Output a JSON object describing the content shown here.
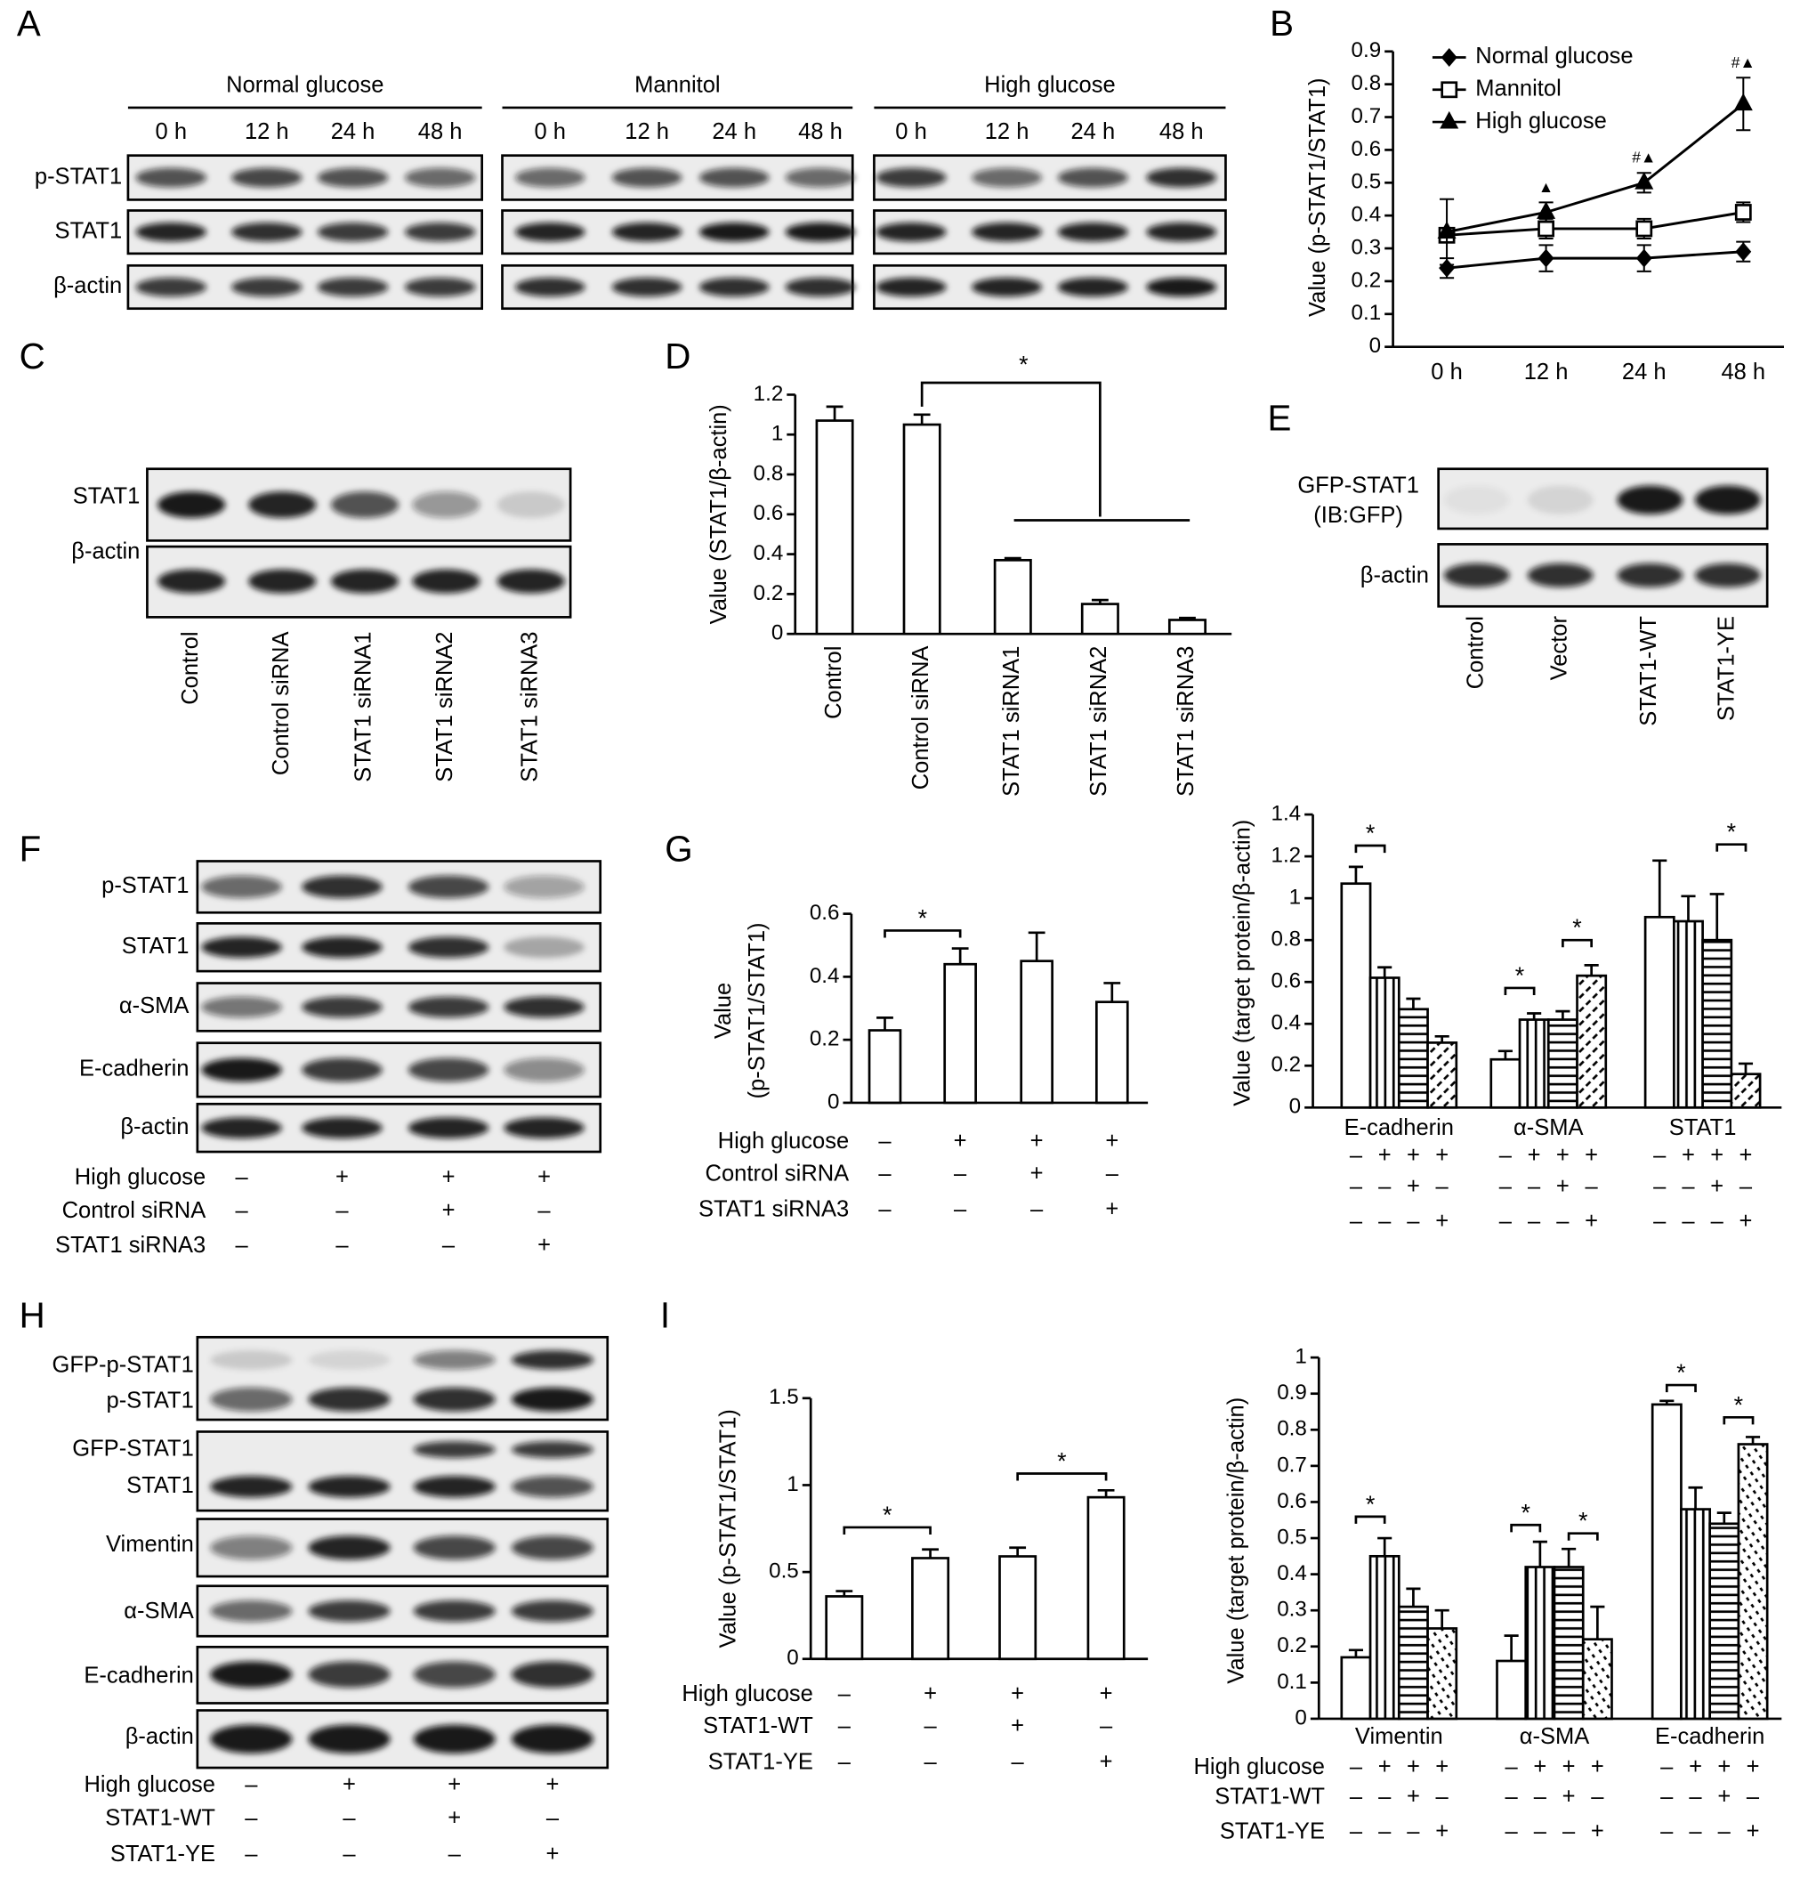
{
  "panel_labels": [
    "A",
    "B",
    "C",
    "D",
    "E",
    "F",
    "G",
    "H",
    "I"
  ],
  "blots": {
    "A": {
      "groups": [
        "Normal glucose",
        "Mannitol",
        "High glucose"
      ],
      "times": [
        "0 h",
        "12 h",
        "24 h",
        "48 h"
      ],
      "rows": [
        "p-STAT1",
        "STAT1",
        "β-actin"
      ]
    },
    "C": {
      "rows": [
        "STAT1",
        "β-actin"
      ],
      "lanes": [
        "Control",
        "Control siRNA",
        "STAT1 siRNA1",
        "STAT1 siRNA2",
        "STAT1 siRNA3"
      ]
    },
    "E": {
      "rows": [
        "GFP-STAT1",
        "(IB:GFP)",
        "β-actin"
      ],
      "lanes": [
        "Control",
        "Vector",
        "STAT1-WT",
        "STAT1-YE"
      ]
    },
    "F": {
      "rows": [
        "p-STAT1",
        "STAT1",
        "α-SMA",
        "E-cadherin",
        "β-actin"
      ],
      "conditions": [
        {
          "label": "High glucose",
          "signs": [
            "–",
            "+",
            "+",
            "+"
          ]
        },
        {
          "label": "Control siRNA",
          "signs": [
            "–",
            "–",
            "+",
            "–"
          ]
        },
        {
          "label": "STAT1 siRNA3",
          "signs": [
            "–",
            "–",
            "–",
            "+"
          ]
        }
      ]
    },
    "H": {
      "rows": [
        "GFP-p-STAT1",
        "p-STAT1",
        "GFP-STAT1",
        "STAT1",
        "Vimentin",
        "α-SMA",
        "E-cadherin",
        "β-actin"
      ],
      "conditions": [
        {
          "label": "High glucose",
          "signs": [
            "–",
            "+",
            "+",
            "+"
          ]
        },
        {
          "label": "STAT1-WT",
          "signs": [
            "–",
            "–",
            "+",
            "–"
          ]
        },
        {
          "label": "STAT1-YE",
          "signs": [
            "–",
            "–",
            "–",
            "+"
          ]
        }
      ]
    }
  },
  "chart_data": [
    {
      "type": "line",
      "ylabel": "Value (p-STAT1/STAT1)",
      "categories": [
        "0 h",
        "12 h",
        "24 h",
        "48 h"
      ],
      "ylim": [
        0,
        0.9
      ],
      "yticks": [
        0,
        0.1,
        0.2,
        0.3,
        0.4,
        0.5,
        0.6,
        0.7,
        0.8,
        0.9
      ],
      "legend": "upper left",
      "series": [
        {
          "name": "Normal glucose",
          "color": "#000000",
          "marker": "diamond",
          "values": [
            0.24,
            0.27,
            0.27,
            0.29
          ],
          "errors": [
            0.03,
            0.04,
            0.04,
            0.03
          ]
        },
        {
          "name": "Mannitol",
          "color": "#000000",
          "marker": "square",
          "values": [
            0.34,
            0.36,
            0.36,
            0.41
          ],
          "errors": [
            0.02,
            0.03,
            0.03,
            0.03
          ]
        },
        {
          "name": "High glucose",
          "color": "#000000",
          "marker": "triangle",
          "values": [
            0.35,
            0.41,
            0.5,
            0.74
          ],
          "errors": [
            0.1,
            0.03,
            0.03,
            0.08
          ]
        }
      ],
      "annotations": [
        null,
        "▲",
        "#▲",
        "#▲"
      ]
    },
    {
      "type": "bar",
      "ylabel": "Value (STAT1/β-actin)",
      "categories": [
        "Control",
        "Control siRNA",
        "STAT1 siRNA1",
        "STAT1 siRNA2",
        "STAT1 siRNA3"
      ],
      "values": [
        1.07,
        1.05,
        0.37,
        0.15,
        0.07
      ],
      "errors": [
        0.07,
        0.05,
        0.01,
        0.02,
        0.01
      ],
      "color": "#000000",
      "ylim": [
        0,
        1.2
      ],
      "yticks": [
        0,
        0.2,
        0.4,
        0.6,
        0.8,
        1,
        1.2
      ],
      "annotations": [
        "*"
      ]
    },
    {
      "type": "bar",
      "ylabel": [
        "Value",
        "(p-STAT1/STAT1)"
      ],
      "values": [
        0.23,
        0.44,
        0.45,
        0.32
      ],
      "errors": [
        0.04,
        0.05,
        0.09,
        0.06
      ],
      "color": "#000000",
      "ylim": [
        0,
        0.6
      ],
      "yticks": [
        0,
        0.2,
        0.4,
        0.6
      ],
      "conditions": [
        {
          "label": "High glucose",
          "signs": [
            "–",
            "+",
            "+",
            "+"
          ]
        },
        {
          "label": "Control siRNA",
          "signs": [
            "–",
            "–",
            "+",
            "–"
          ]
        },
        {
          "label": "STAT1 siRNA3",
          "signs": [
            "–",
            "–",
            "–",
            "+"
          ]
        }
      ],
      "annotations": [
        "*"
      ]
    },
    {
      "type": "bar",
      "ylabel": "Value (target protein/β-actin)",
      "categories": [
        "E-cadherin",
        "α-SMA",
        "STAT1"
      ],
      "ylim": [
        0,
        1.4
      ],
      "yticks": [
        0,
        0.2,
        0.4,
        0.6,
        0.8,
        1,
        1.2,
        1.4
      ],
      "series": [
        {
          "pattern": "none",
          "color": "#000000",
          "values": [
            1.07,
            0.23,
            0.91
          ],
          "errors": [
            0.08,
            0.04,
            0.27
          ]
        },
        {
          "pattern": "vertical",
          "color": "#000000",
          "values": [
            0.62,
            0.42,
            0.89
          ],
          "errors": [
            0.05,
            0.03,
            0.12
          ]
        },
        {
          "pattern": "horizontal",
          "color": "#000000",
          "values": [
            0.47,
            0.42,
            0.8
          ],
          "errors": [
            0.05,
            0.04,
            0.22
          ]
        },
        {
          "pattern": "diagonal",
          "color": "#000000",
          "values": [
            0.31,
            0.63,
            0.16
          ],
          "errors": [
            0.03,
            0.05,
            0.05
          ]
        }
      ],
      "conditions": [
        {
          "signs": [
            "–",
            "+",
            "+",
            "+"
          ]
        },
        {
          "signs": [
            "–",
            "–",
            "+",
            "–"
          ]
        },
        {
          "signs": [
            "–",
            "–",
            "–",
            "+"
          ]
        }
      ],
      "annotations": [
        "*",
        "*",
        "*",
        "*"
      ]
    },
    {
      "type": "bar",
      "ylabel": "Value (p-STAT1/STAT1)",
      "values": [
        0.36,
        0.58,
        0.59,
        0.93
      ],
      "errors": [
        0.03,
        0.05,
        0.05,
        0.04
      ],
      "color": "#000000",
      "ylim": [
        0,
        1.5
      ],
      "yticks": [
        0,
        0.5,
        1,
        1.5
      ],
      "conditions": [
        {
          "label": "High glucose",
          "signs": [
            "–",
            "+",
            "+",
            "+"
          ]
        },
        {
          "label": "STAT1-WT",
          "signs": [
            "–",
            "–",
            "+",
            "–"
          ]
        },
        {
          "label": "STAT1-YE",
          "signs": [
            "–",
            "–",
            "–",
            "+"
          ]
        }
      ],
      "annotations": [
        "*",
        "*"
      ]
    },
    {
      "type": "bar",
      "ylabel": "Value (target protein/β-actin)",
      "categories": [
        "Vimentin",
        "α-SMA",
        "E-cadherin"
      ],
      "ylim": [
        0,
        1
      ],
      "yticks": [
        0,
        0.1,
        0.2,
        0.3,
        0.4,
        0.5,
        0.6,
        0.7,
        0.8,
        0.9,
        1
      ],
      "series": [
        {
          "pattern": "none",
          "color": "#000000",
          "values": [
            0.17,
            0.16,
            0.87
          ],
          "errors": [
            0.02,
            0.07,
            0.01
          ]
        },
        {
          "pattern": "vertical",
          "color": "#000000",
          "values": [
            0.45,
            0.42,
            0.58
          ],
          "errors": [
            0.05,
            0.07,
            0.06
          ]
        },
        {
          "pattern": "horizontal",
          "color": "#000000",
          "values": [
            0.31,
            0.42,
            0.54
          ],
          "errors": [
            0.05,
            0.05,
            0.03
          ]
        },
        {
          "pattern": "dashed",
          "color": "#000000",
          "values": [
            0.25,
            0.22,
            0.76
          ],
          "errors": [
            0.05,
            0.09,
            0.02
          ]
        }
      ],
      "conditions": [
        {
          "label": "High glucose",
          "signs": [
            "–",
            "+",
            "+",
            "+"
          ]
        },
        {
          "label": "STAT1-WT",
          "signs": [
            "–",
            "–",
            "+",
            "–"
          ]
        },
        {
          "label": "STAT1-YE",
          "signs": [
            "–",
            "–",
            "–",
            "+"
          ]
        }
      ],
      "annotations": [
        "*",
        "*",
        "*",
        "*",
        "*"
      ]
    }
  ]
}
